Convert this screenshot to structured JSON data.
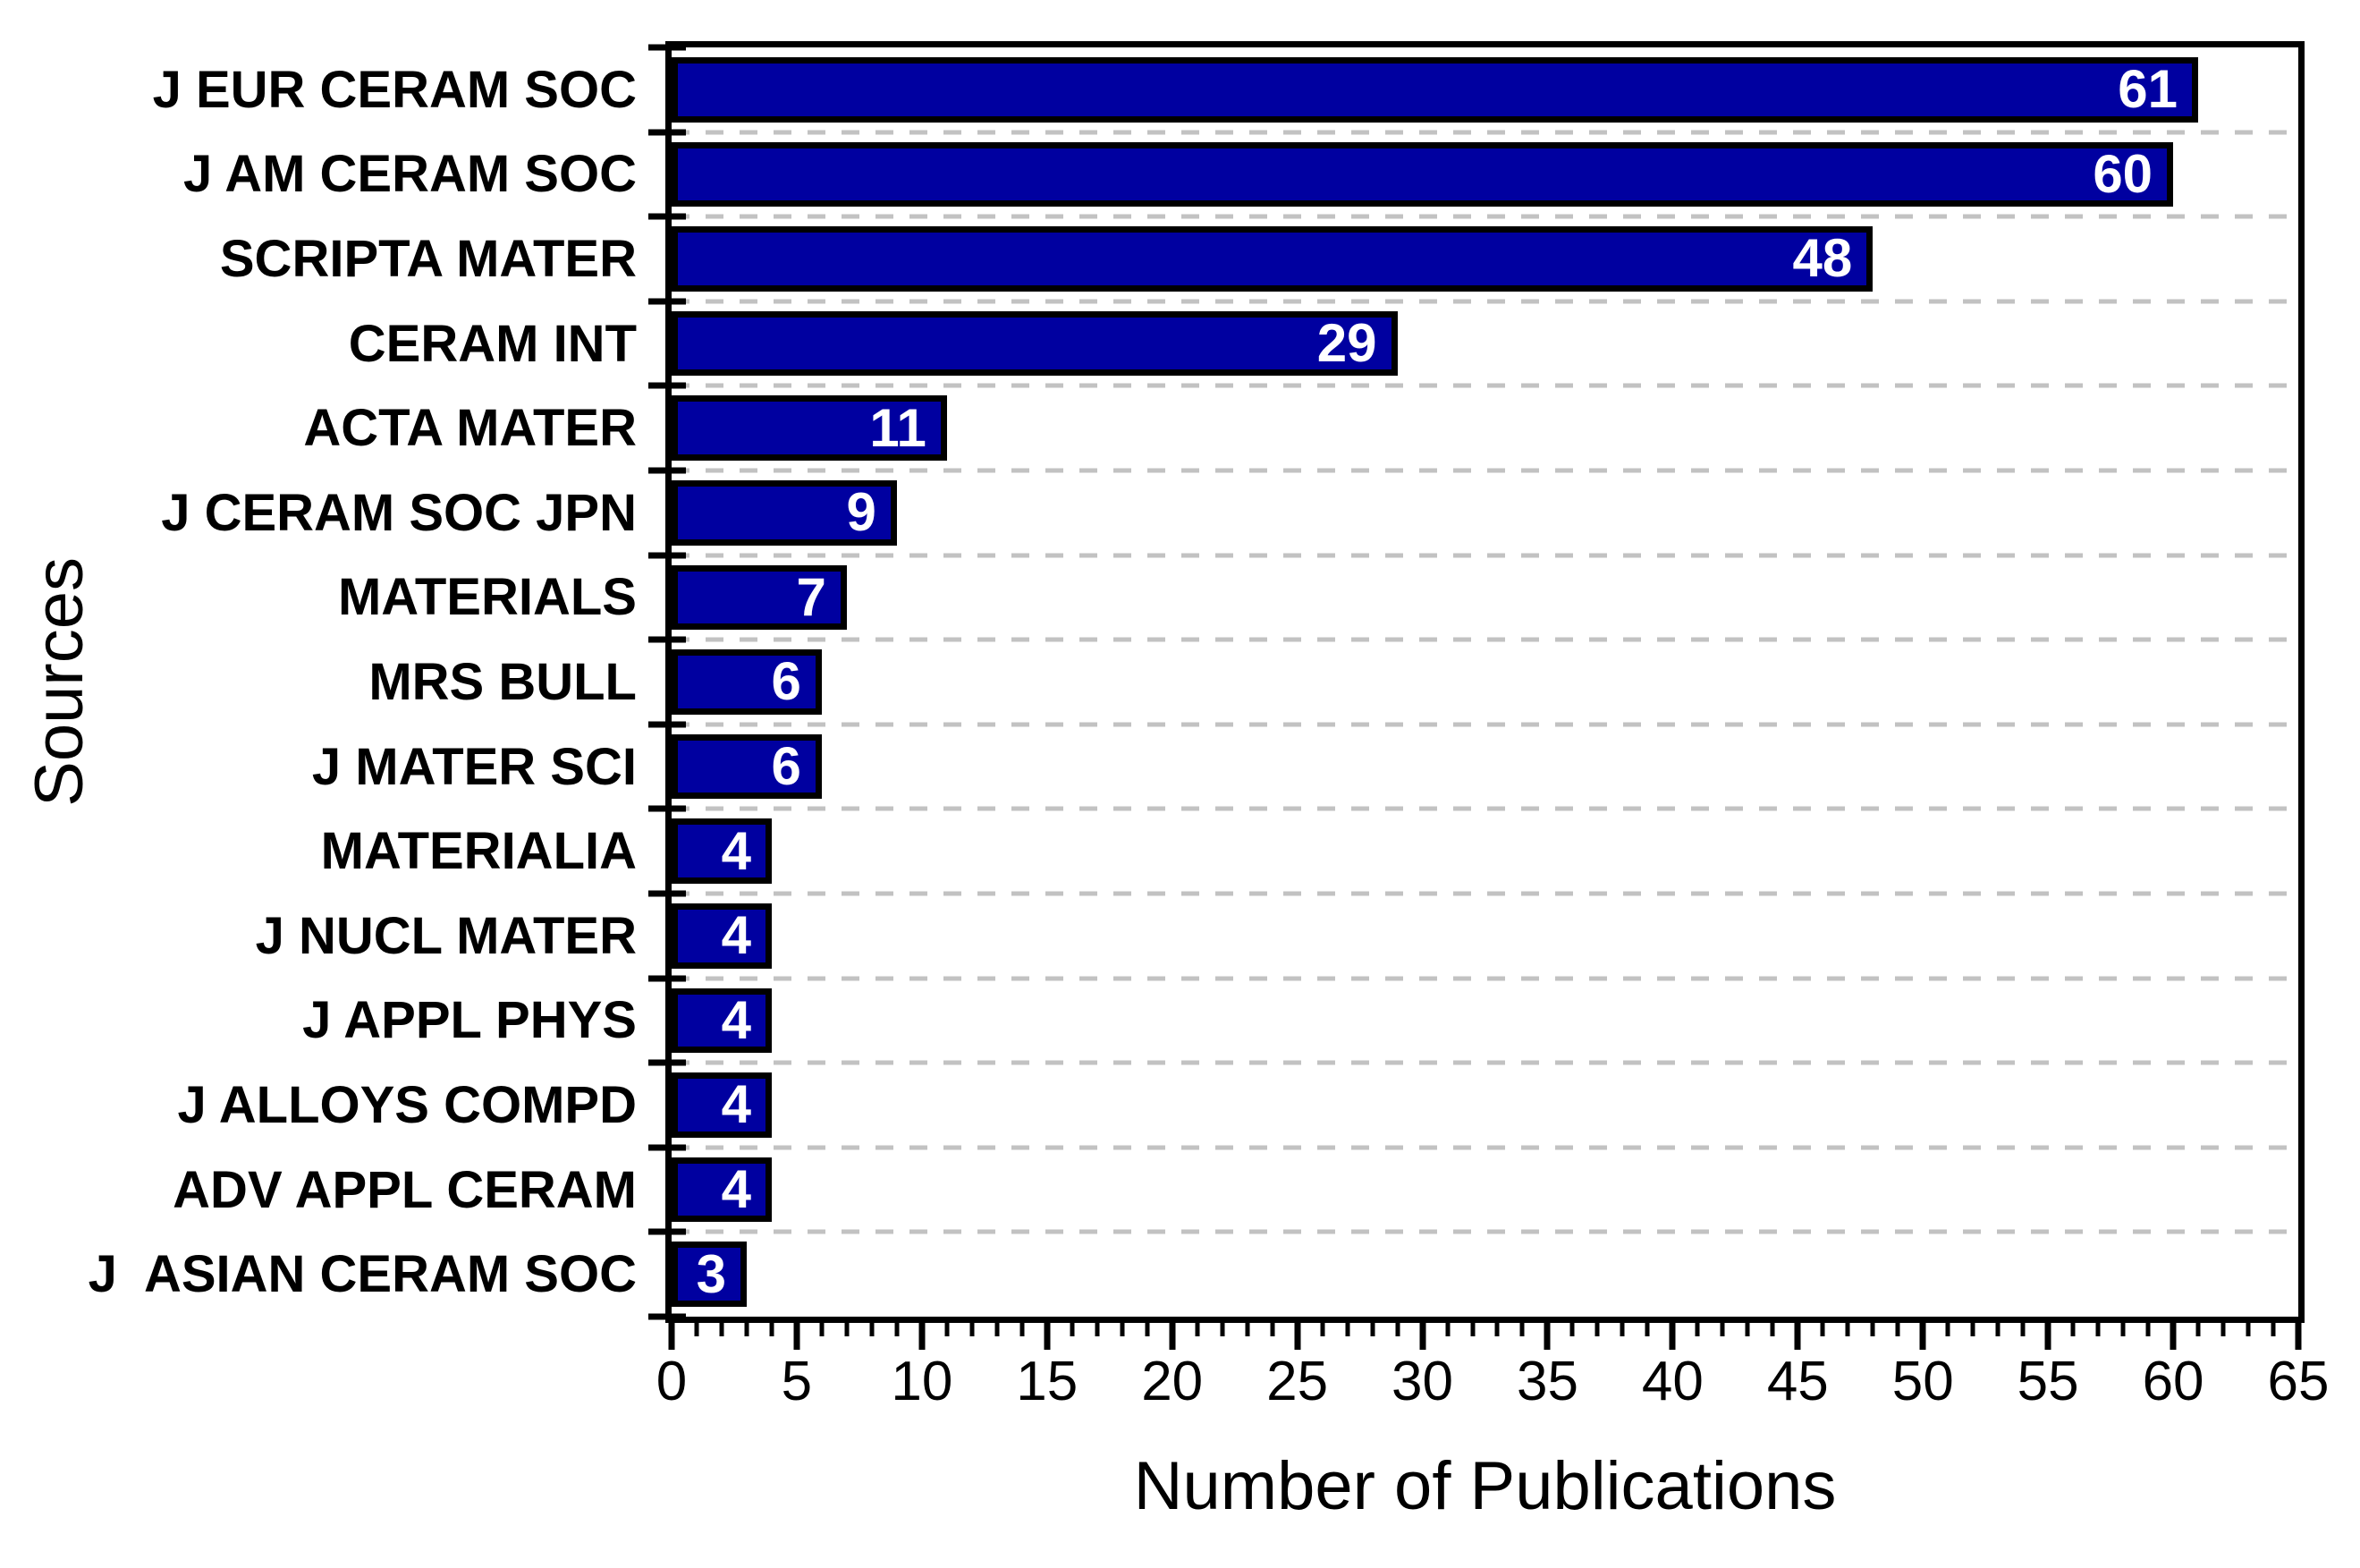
{
  "chart_data": {
    "type": "bar",
    "orientation": "horizontal",
    "title": "",
    "xlabel": "Number of Publications",
    "ylabel": "Sources",
    "xlim": [
      0,
      65
    ],
    "x_major_tick_step": 5,
    "x_minor_tick_step": 1,
    "xticks": [
      0,
      5,
      10,
      15,
      20,
      25,
      30,
      35,
      40,
      45,
      50,
      55,
      60,
      65
    ],
    "categories": [
      "J EUR CERAM SOC",
      "J AM CERAM SOC",
      "SCRIPTA MATER",
      "CERAM INT",
      "ACTA MATER",
      "J CERAM SOC JPN",
      "MATERIALS",
      "MRS BULL",
      "J MATER SCI",
      "MATERIALIA",
      "J NUCL MATER",
      "J APPL PHYS",
      "J ALLOYS COMPD",
      "ADV APPL CERAM",
      "J  ASIAN CERAM SOC"
    ],
    "values": [
      61,
      60,
      48,
      29,
      11,
      9,
      7,
      6,
      6,
      4,
      4,
      4,
      4,
      4,
      3
    ],
    "value_labels_shown": true,
    "colors": {
      "bar_fill": "#0000A0",
      "bar_border": "#000000",
      "value_label": "#FFFFFF",
      "gridline": "#C2C2C2",
      "axis": "#000000",
      "text": "#000000",
      "background": "#FFFFFF"
    },
    "grid": "horizontal dashed lines at category boundaries",
    "legend": "none"
  }
}
